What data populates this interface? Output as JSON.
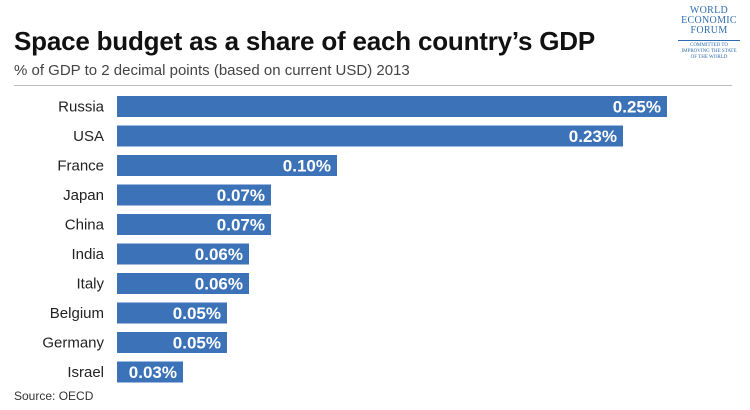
{
  "logo": {
    "lines": [
      "WORLD",
      "ECONOMIC",
      "FORUM"
    ],
    "tagline": [
      "COMMITTED TO",
      "IMPROVING THE STATE",
      "OF THE WORLD"
    ]
  },
  "source": "Source: OECD",
  "colors": {
    "bar": "#3b72b8",
    "label": "#ffffff"
  },
  "chart_data": {
    "type": "bar",
    "orientation": "horizontal",
    "title": "Space budget as a share of each country’s GDP",
    "subtitle": "% of GDP to 2 decimal points (based on current USD) 2013",
    "categories": [
      "Russia",
      "USA",
      "France",
      "Japan",
      "China",
      "India",
      "Italy",
      "Belgium",
      "Germany",
      "Israel"
    ],
    "values": [
      0.25,
      0.23,
      0.1,
      0.07,
      0.07,
      0.06,
      0.06,
      0.05,
      0.05,
      0.03
    ],
    "data_labels": [
      "0.25%",
      "0.23%",
      "0.10%",
      "0.07%",
      "0.07%",
      "0.06%",
      "0.06%",
      "0.05%",
      "0.05%",
      "0.03%"
    ],
    "xlim": [
      0,
      0.25
    ],
    "grid": false,
    "legend": "none"
  }
}
